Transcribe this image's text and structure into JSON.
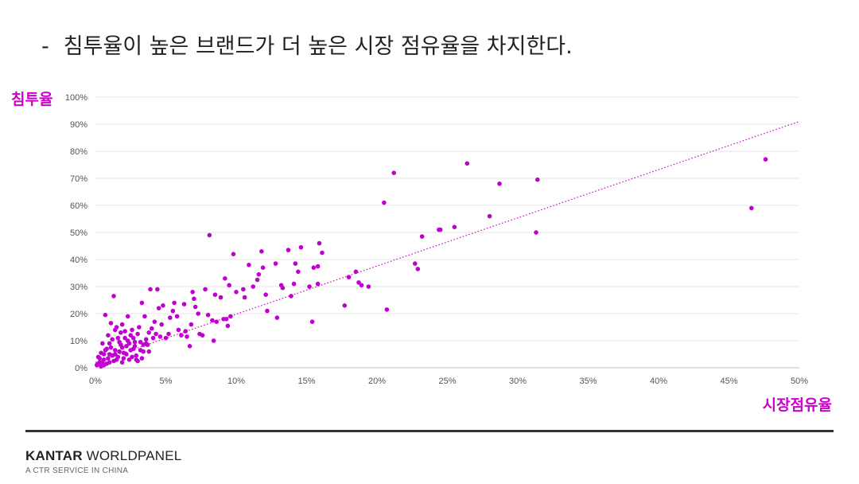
{
  "slide": {
    "bullet": "-",
    "title": "침투율이 높은 브랜드가 더 높은 시장 점유율을 차지한다."
  },
  "footer": {
    "brand_bold": "KANTAR",
    "brand_rest": " WORLDPANEL",
    "tagline": "A CTR SERVICE IN CHINA"
  },
  "colors": {
    "accent": "#cc00cc",
    "point": "#c000d0",
    "grid": "#e6e6e6"
  },
  "chart_data": {
    "type": "scatter",
    "title": "",
    "xlabel": "시장점유율",
    "ylabel": "침투율",
    "xlim": [
      0,
      50
    ],
    "ylim": [
      0,
      100
    ],
    "xticks": [
      "0%",
      "5%",
      "10%",
      "15%",
      "20%",
      "25%",
      "30%",
      "35%",
      "40%",
      "45%",
      "50%"
    ],
    "yticks": [
      "0%",
      "10%",
      "20%",
      "30%",
      "40%",
      "50%",
      "60%",
      "70%",
      "80%",
      "90%",
      "100%"
    ],
    "grid": true,
    "trendline": {
      "style": "dotted",
      "from": [
        0,
        2
      ],
      "to": [
        50,
        91
      ]
    },
    "points": [
      [
        47.6,
        77
      ],
      [
        46.6,
        59
      ],
      [
        31.4,
        69.5
      ],
      [
        31.3,
        50
      ],
      [
        28.7,
        68
      ],
      [
        28.0,
        56
      ],
      [
        26.4,
        75.5
      ],
      [
        25.5,
        52
      ],
      [
        24.5,
        51
      ],
      [
        24.4,
        51
      ],
      [
        23.2,
        48.5
      ],
      [
        22.9,
        36.5
      ],
      [
        22.7,
        38.5
      ],
      [
        21.2,
        72
      ],
      [
        20.7,
        21.5
      ],
      [
        20.5,
        61
      ],
      [
        19.4,
        30
      ],
      [
        18.9,
        30.5
      ],
      [
        18.7,
        31.5
      ],
      [
        18.5,
        35.5
      ],
      [
        18.0,
        33.5
      ],
      [
        17.7,
        23
      ],
      [
        16.1,
        42.5
      ],
      [
        15.9,
        46
      ],
      [
        15.8,
        37.5
      ],
      [
        15.8,
        31
      ],
      [
        15.5,
        37
      ],
      [
        15.4,
        17
      ],
      [
        15.2,
        30
      ],
      [
        14.6,
        44.5
      ],
      [
        14.4,
        35.5
      ],
      [
        14.2,
        38.5
      ],
      [
        14.1,
        31
      ],
      [
        13.9,
        26.5
      ],
      [
        13.7,
        43.5
      ],
      [
        13.3,
        29.5
      ],
      [
        13.2,
        30.5
      ],
      [
        12.9,
        18.5
      ],
      [
        12.8,
        38.5
      ],
      [
        12.2,
        21
      ],
      [
        12.1,
        27
      ],
      [
        11.9,
        37
      ],
      [
        11.8,
        43
      ],
      [
        11.6,
        34.5
      ],
      [
        11.5,
        32.5
      ],
      [
        11.2,
        30
      ],
      [
        10.9,
        38
      ],
      [
        10.6,
        26
      ],
      [
        10.5,
        29
      ],
      [
        10.0,
        28
      ],
      [
        9.8,
        42
      ],
      [
        9.6,
        19
      ],
      [
        9.5,
        30.5
      ],
      [
        9.4,
        15.5
      ],
      [
        9.3,
        18
      ],
      [
        9.2,
        33
      ],
      [
        9.1,
        18
      ],
      [
        8.9,
        26
      ],
      [
        8.6,
        17
      ],
      [
        8.5,
        27
      ],
      [
        8.4,
        10
      ],
      [
        8.3,
        17.5
      ],
      [
        8.1,
        49
      ],
      [
        8.0,
        19.5
      ],
      [
        7.8,
        29
      ],
      [
        7.6,
        12
      ],
      [
        7.4,
        12.5
      ],
      [
        7.3,
        20
      ],
      [
        7.1,
        22.5
      ],
      [
        7.0,
        25.5
      ],
      [
        6.9,
        28
      ],
      [
        6.8,
        16
      ],
      [
        6.7,
        8
      ],
      [
        6.5,
        11.5
      ],
      [
        6.4,
        13.5
      ],
      [
        6.3,
        23.5
      ],
      [
        6.1,
        12
      ],
      [
        5.9,
        14
      ],
      [
        5.8,
        19
      ],
      [
        5.6,
        24
      ],
      [
        5.5,
        21
      ],
      [
        5.3,
        18.5
      ],
      [
        5.2,
        12.5
      ],
      [
        5.0,
        11
      ],
      [
        4.8,
        23
      ],
      [
        4.7,
        16
      ],
      [
        4.6,
        11.5
      ],
      [
        4.5,
        22
      ],
      [
        4.4,
        29
      ],
      [
        4.3,
        12.5
      ],
      [
        4.2,
        17
      ],
      [
        4.0,
        14.5
      ],
      [
        3.9,
        29
      ],
      [
        3.8,
        13
      ],
      [
        3.7,
        8.5
      ],
      [
        3.6,
        10.5
      ],
      [
        3.5,
        19
      ],
      [
        3.4,
        6
      ],
      [
        3.3,
        24
      ],
      [
        3.2,
        9.5
      ],
      [
        3.1,
        15
      ],
      [
        3.0,
        12.5
      ],
      [
        2.9,
        3
      ],
      [
        2.8,
        8
      ],
      [
        2.7,
        11
      ],
      [
        2.6,
        14
      ],
      [
        2.5,
        6.5
      ],
      [
        2.4,
        9
      ],
      [
        2.3,
        19
      ],
      [
        2.2,
        5
      ],
      [
        2.1,
        11
      ],
      [
        2.0,
        3.5
      ],
      [
        1.9,
        7.5
      ],
      [
        1.8,
        13
      ],
      [
        1.7,
        9.5
      ],
      [
        1.6,
        4
      ],
      [
        1.5,
        15
      ],
      [
        1.4,
        6.5
      ],
      [
        1.3,
        26.5
      ],
      [
        1.2,
        10.5
      ],
      [
        1.1,
        16.5
      ],
      [
        1.0,
        5
      ],
      [
        0.9,
        12
      ],
      [
        0.8,
        7
      ],
      [
        0.7,
        19.5
      ],
      [
        0.6,
        3
      ],
      [
        0.5,
        9
      ],
      [
        0.4,
        5.5
      ],
      [
        0.3,
        2
      ],
      [
        0.2,
        4
      ],
      [
        0.1,
        1
      ],
      [
        0.4,
        0.5
      ],
      [
        0.8,
        1.5
      ],
      [
        1.3,
        2.5
      ],
      [
        1.9,
        2
      ],
      [
        2.4,
        3
      ],
      [
        2.9,
        4.5
      ],
      [
        3.3,
        3.5
      ],
      [
        3.4,
        8.5
      ],
      [
        3.8,
        6
      ],
      [
        0.6,
        1
      ],
      [
        1.0,
        2
      ],
      [
        1.5,
        3
      ],
      [
        2.0,
        5.5
      ],
      [
        2.6,
        4
      ],
      [
        3.0,
        2.5
      ],
      [
        1.2,
        4.5
      ],
      [
        1.7,
        6
      ],
      [
        2.2,
        8
      ],
      [
        2.7,
        7
      ],
      [
        0.9,
        3.5
      ],
      [
        1.4,
        5
      ],
      [
        1.8,
        8.5
      ],
      [
        2.3,
        10
      ],
      [
        2.8,
        9.5
      ],
      [
        3.2,
        6.5
      ],
      [
        0.5,
        2
      ],
      [
        1.1,
        7.5
      ],
      [
        1.6,
        11
      ],
      [
        2.1,
        13.5
      ],
      [
        2.5,
        12
      ],
      [
        3.6,
        9
      ],
      [
        4.1,
        11
      ],
      [
        1.9,
        16
      ],
      [
        1.4,
        14
      ],
      [
        1.0,
        9
      ],
      [
        0.7,
        6.5
      ],
      [
        0.3,
        3.5
      ],
      [
        0.2,
        1.5
      ],
      [
        0.6,
        5
      ]
    ]
  }
}
